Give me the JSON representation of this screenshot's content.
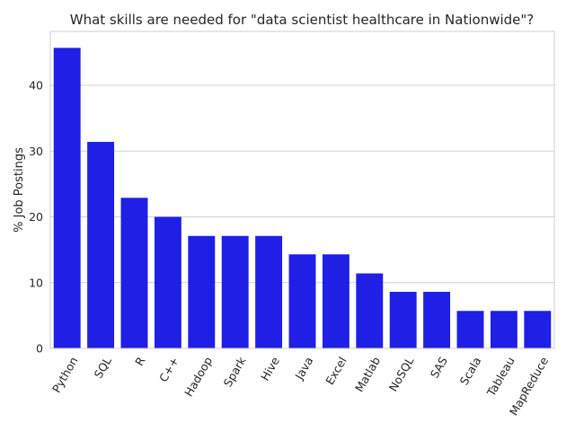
{
  "chart_data": {
    "type": "bar",
    "title": "What skills are needed for \"data scientist healthcare in Nationwide\"?",
    "xlabel": "",
    "ylabel": "% Job Postings",
    "categories": [
      "Python",
      "SQL",
      "R",
      "C++",
      "Hadoop",
      "Spark",
      "Hive",
      "Java",
      "Excel",
      "Matlab",
      "NoSQL",
      "SAS",
      "Scala",
      "Tableau",
      "MapReduce"
    ],
    "values": [
      45.7,
      31.4,
      22.9,
      20.0,
      17.1,
      17.1,
      17.1,
      14.3,
      14.3,
      11.4,
      8.6,
      8.6,
      5.7,
      5.7,
      5.7
    ],
    "ylim": [
      0,
      48.2
    ],
    "yticks": [
      0,
      10,
      20,
      30,
      40
    ],
    "grid": true,
    "bar_color": "#1f1fe6",
    "grid_color": "#d0d0d0",
    "frame_color": "#cccccc"
  }
}
